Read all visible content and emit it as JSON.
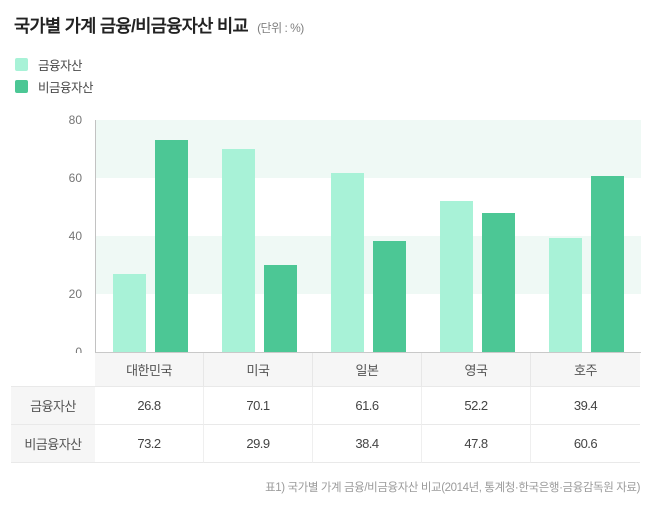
{
  "title": "국가별 가계 금융/비금융자산 비교",
  "unit_label": "(단위 : %)",
  "legend": [
    {
      "label": "금융자산",
      "color": "#a8f2d7"
    },
    {
      "label": "비금융자산",
      "color": "#4cc795"
    }
  ],
  "chart_data": {
    "type": "bar",
    "title": "국가별 가계 금융/비금융자산 비교",
    "unit": "%",
    "categories": [
      "대한민국",
      "미국",
      "일본",
      "영국",
      "호주"
    ],
    "series": [
      {
        "name": "금융자산",
        "color": "#a8f2d7",
        "values": [
          26.8,
          70.1,
          61.6,
          52.2,
          39.4
        ]
      },
      {
        "name": "비금융자산",
        "color": "#4cc795",
        "values": [
          73.2,
          29.9,
          38.4,
          47.8,
          60.6
        ]
      }
    ],
    "ylim": [
      0,
      80
    ],
    "yticks": [
      0,
      20,
      40,
      60,
      80
    ],
    "band_color": "#eff9f5",
    "grid": "banded-horizontal",
    "legend_position": "top-left"
  },
  "table": {
    "corner_label": "",
    "column_headers": [
      "대한민국",
      "미국",
      "일본",
      "영국",
      "호주"
    ],
    "rows": [
      {
        "label": "금융자산",
        "values": [
          26.8,
          70.1,
          61.6,
          52.2,
          39.4
        ]
      },
      {
        "label": "비금융자산",
        "values": [
          73.2,
          29.9,
          38.4,
          47.8,
          60.6
        ]
      }
    ]
  },
  "caption": "표1) 국가별 가계 금융/비금융자산 비교(2014년, 통계청·한국은행·금융감독원 자료)"
}
